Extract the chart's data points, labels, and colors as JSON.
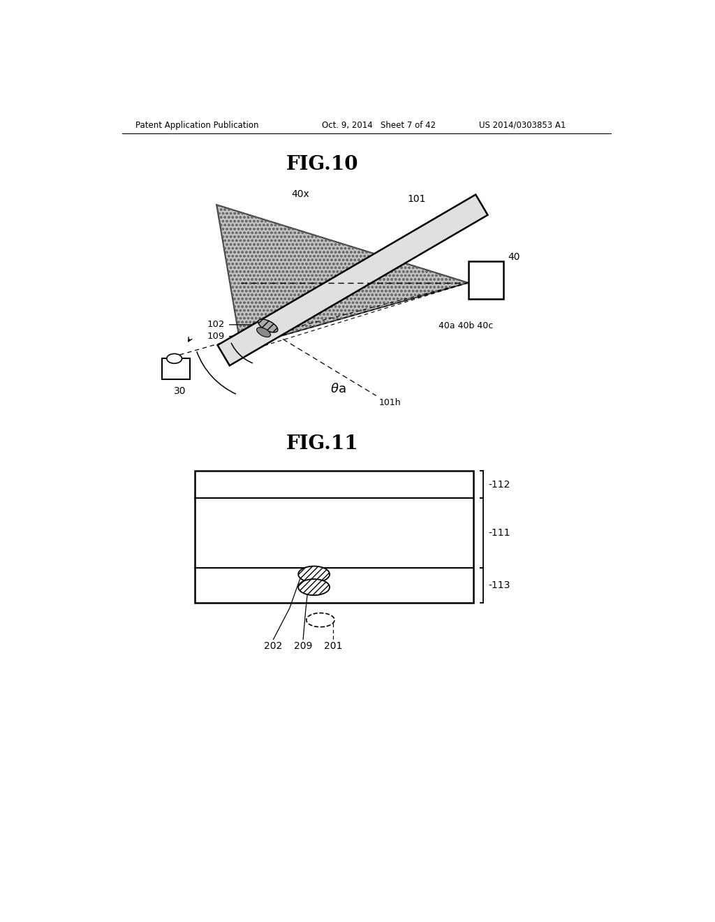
{
  "bg_color": "#ffffff",
  "header_left": "Patent Application Publication",
  "header_mid": "Oct. 9, 2014   Sheet 7 of 42",
  "header_right": "US 2014/0303853 A1",
  "fig10_title": "FIG.10",
  "fig11_title": "FIG.11"
}
